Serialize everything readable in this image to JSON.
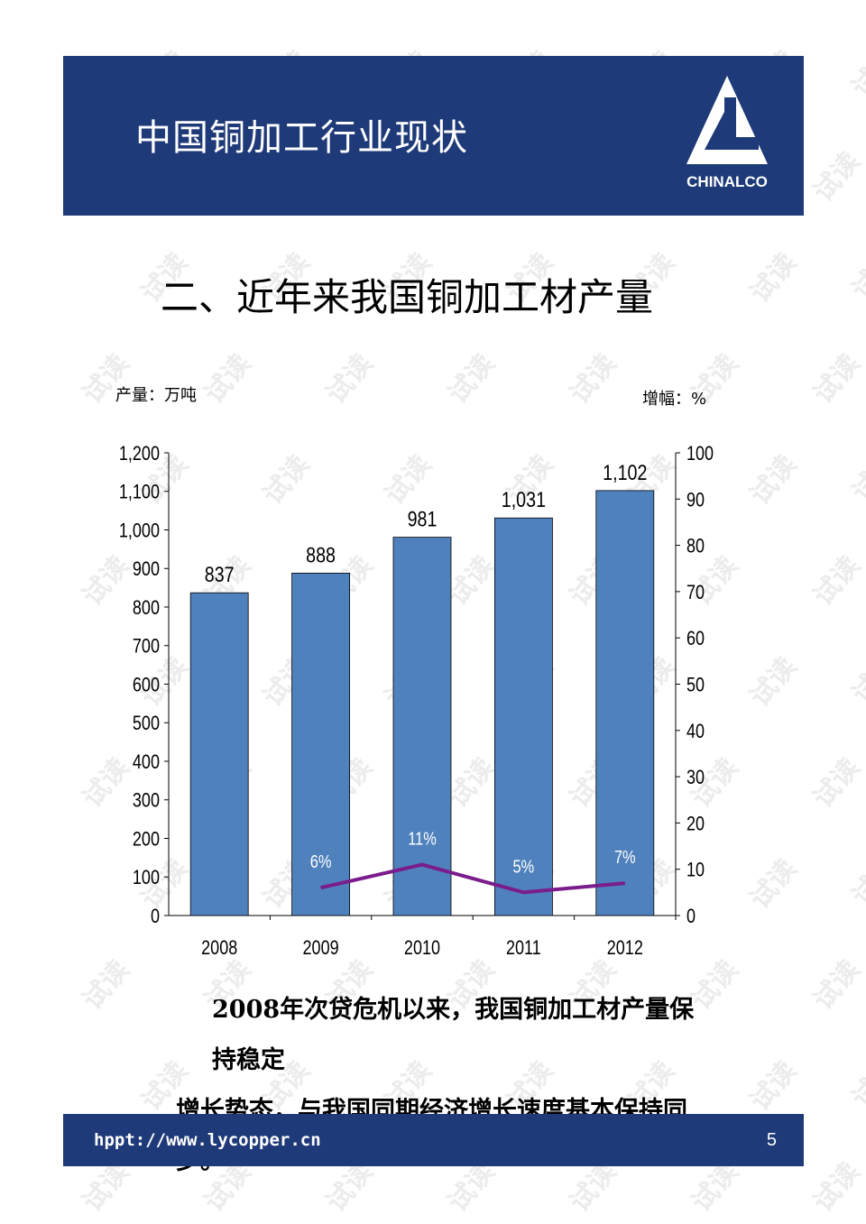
{
  "header": {
    "title": "中国铜加工行业现状",
    "logo_text": "CHINALCO"
  },
  "section_title": "二、近年来我国铜加工材产量",
  "chart_data": {
    "type": "bar",
    "categories": [
      "2008",
      "2009",
      "2010",
      "2011",
      "2012"
    ],
    "series": [
      {
        "values": [
          837,
          888,
          981,
          1031,
          1102
        ],
        "data_labels": [
          "837",
          "888",
          "981",
          "1,031",
          "1,102"
        ],
        "axis": "left",
        "type": "bar"
      },
      {
        "values": [
          null,
          6,
          11,
          5,
          7
        ],
        "data_labels": [
          "",
          "6%",
          "11%",
          "5%",
          "7%"
        ],
        "axis": "right",
        "type": "line"
      }
    ],
    "ylabel": "产量：万吨",
    "y2label": "增幅：%",
    "ylim": [
      0,
      1200
    ],
    "y2lim": [
      0,
      100
    ],
    "yticks": [
      "0",
      "100",
      "200",
      "300",
      "400",
      "500",
      "600",
      "700",
      "800",
      "900",
      "1,000",
      "1,100",
      "1,200"
    ],
    "y2ticks": [
      "0",
      "10",
      "20",
      "30",
      "40",
      "50",
      "60",
      "70",
      "80",
      "90",
      "100"
    ],
    "colors": {
      "bar": "#4f81bd",
      "line": "#7b1c8c"
    },
    "grid": false,
    "legend": "none"
  },
  "caption": {
    "line1": "2008年次贷危机以来，我国铜加工材产量保持稳定",
    "line2": "增长势态，与我国同期经济增长速度基本保持同步。"
  },
  "footer": {
    "url": "hppt://www.lycopper.cn",
    "page_number": "5"
  },
  "watermark": "试读"
}
